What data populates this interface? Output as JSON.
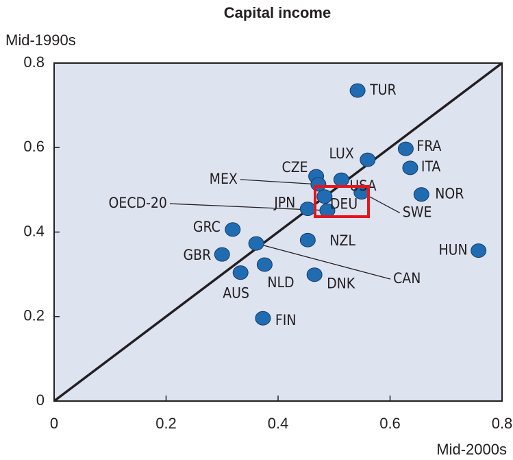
{
  "chart_data": {
    "type": "scatter",
    "title": "Capital income",
    "ylabel": "Mid-1990s",
    "xlabel": "Mid-2000s",
    "labels": [
      "TUR",
      "FRA",
      "ITA",
      "LUX",
      "CZE",
      "MEX",
      "USA",
      "NOR",
      "SWE",
      "DEU",
      "JPN",
      "OECD-20",
      "GRC",
      "GBR",
      "CAN",
      "NZL",
      "HUN",
      "AUS",
      "NLD",
      "DNK",
      "FIN"
    ],
    "x": [
      0.542,
      0.628,
      0.636,
      0.56,
      0.468,
      0.472,
      0.513,
      0.656,
      0.549,
      0.483,
      0.453,
      0.488,
      0.319,
      0.3,
      0.361,
      0.453,
      0.758,
      0.333,
      0.376,
      0.465,
      0.373
    ],
    "values": [
      0.735,
      0.597,
      0.552,
      0.571,
      0.532,
      0.513,
      0.524,
      0.489,
      0.494,
      0.484,
      0.455,
      0.451,
      0.406,
      0.347,
      0.373,
      0.381,
      0.356,
      0.304,
      0.323,
      0.299,
      0.196
    ],
    "color": "#1f6cb3",
    "xlim": [
      0,
      0.8
    ],
    "ylim": [
      0,
      0.8
    ],
    "xticks": [
      0,
      0.2,
      0.4,
      0.6,
      0.8
    ],
    "yticks": [
      0,
      0.2,
      0.4,
      0.6,
      0.8
    ]
  }
}
